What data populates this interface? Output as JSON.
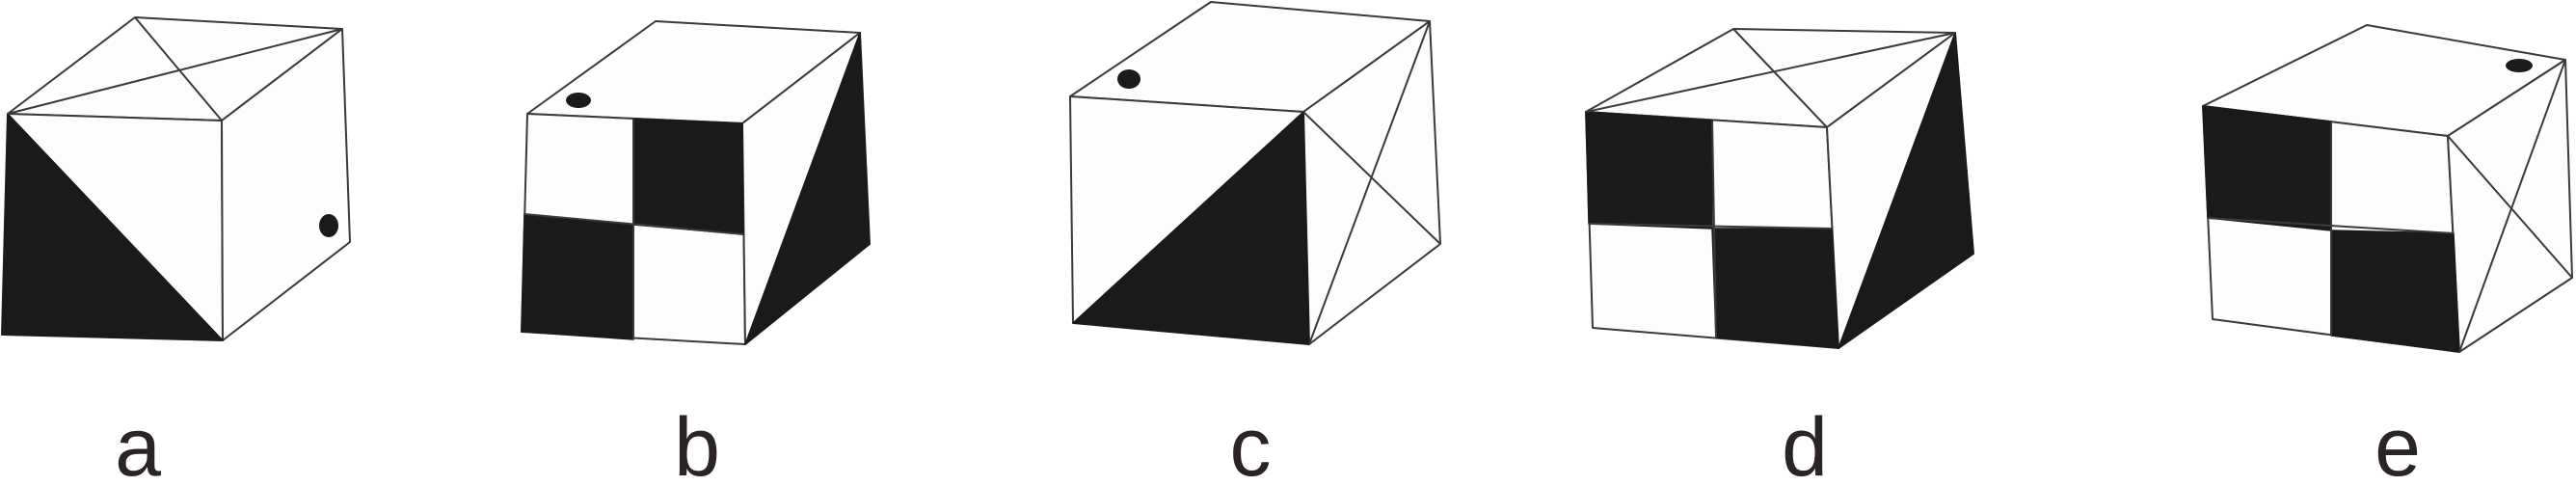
{
  "figure": {
    "options": [
      {
        "id": "a",
        "label": "a"
      },
      {
        "id": "b",
        "label": "b"
      },
      {
        "id": "c",
        "label": "c"
      },
      {
        "id": "d",
        "label": "d"
      },
      {
        "id": "e",
        "label": "e"
      }
    ]
  }
}
